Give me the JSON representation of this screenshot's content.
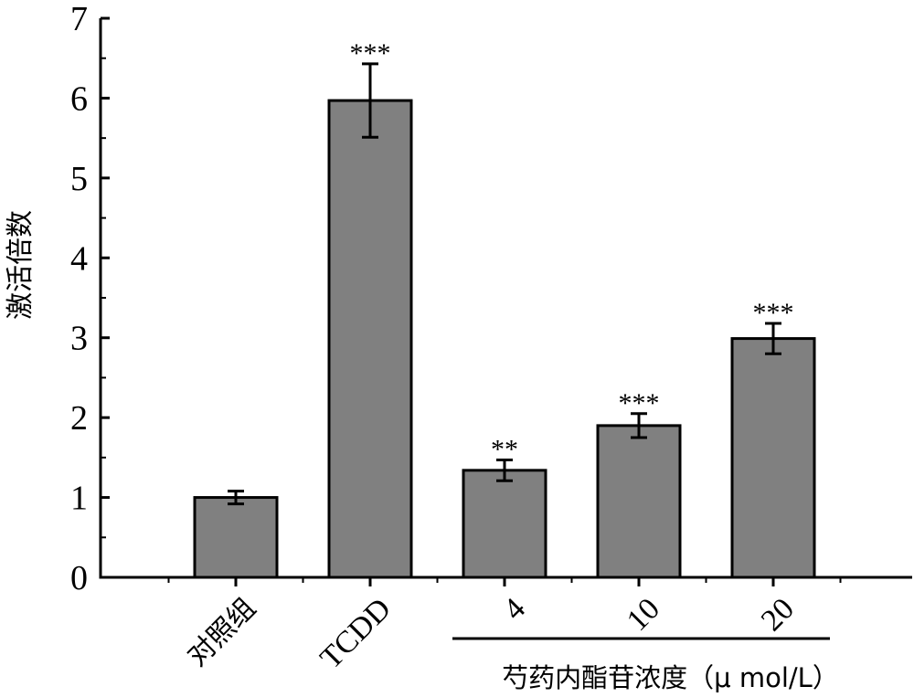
{
  "chart_data": {
    "type": "bar",
    "ylabel": "激活倍数",
    "ylim": [
      0,
      7
    ],
    "yticks": [
      "0",
      "1",
      "2",
      "3",
      "4",
      "5",
      "6",
      "7"
    ],
    "categories": [
      "对照组",
      "TCDD",
      "4",
      "10",
      "20"
    ],
    "values": [
      1.0,
      5.97,
      1.34,
      1.9,
      2.99
    ],
    "errors": [
      0.08,
      0.46,
      0.13,
      0.15,
      0.19
    ],
    "significance": [
      "",
      "***",
      "**",
      "***",
      "***"
    ],
    "group_label": "芍药内酯苷浓度（μ mol/L）",
    "group_members": [
      "4",
      "10",
      "20"
    ],
    "bar_color": "#808080",
    "grid": false
  }
}
